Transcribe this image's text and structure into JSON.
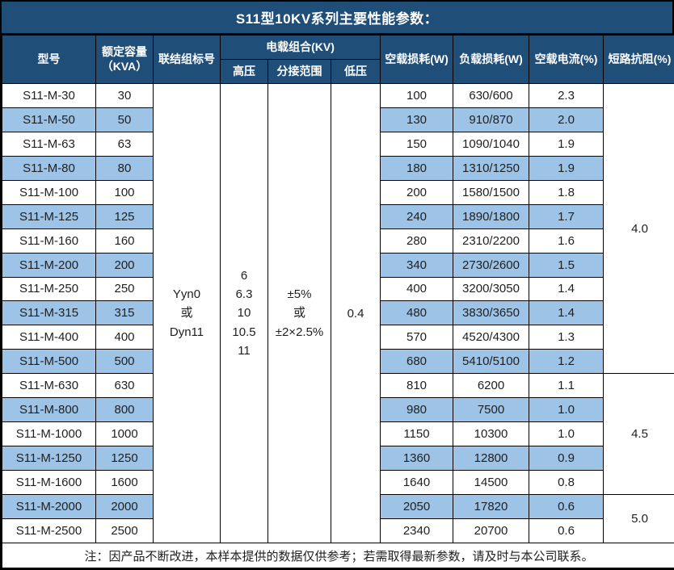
{
  "title": "S11型10KV系列主要性能参数：",
  "table": {
    "headers": {
      "model": "型号",
      "capacity_line1": "额定容量",
      "capacity_line2": "（KVA）",
      "connection": "联结组标号",
      "load_combo": "电载组合(KV)",
      "hv": "高压",
      "tap_range": "分接范围",
      "lv": "低压",
      "no_load_loss": "空载损耗(W)",
      "load_loss": "负载损耗(W)",
      "no_load_current": "空载电流(%)",
      "impedance": "短路抗阻(%)"
    },
    "merged": {
      "connection_value": "Yyn0\n或\nDyn11",
      "hv_value": "6\n6.3\n10\n10.5\n11",
      "tap_value": "±5%\n或\n±2×2.5%",
      "lv_value": "0.4"
    },
    "rows": [
      {
        "model": "S11-M-30",
        "capacity": "30",
        "no_load_loss": "100",
        "load_loss": "630/600",
        "no_load_current": "2.3"
      },
      {
        "model": "S11-M-50",
        "capacity": "50",
        "no_load_loss": "130",
        "load_loss": "910/870",
        "no_load_current": "2.0"
      },
      {
        "model": "S11-M-63",
        "capacity": "63",
        "no_load_loss": "150",
        "load_loss": "1090/1040",
        "no_load_current": "1.9"
      },
      {
        "model": "S11-M-80",
        "capacity": "80",
        "no_load_loss": "180",
        "load_loss": "1310/1250",
        "no_load_current": "1.9"
      },
      {
        "model": "S11-M-100",
        "capacity": "100",
        "no_load_loss": "200",
        "load_loss": "1580/1500",
        "no_load_current": "1.8"
      },
      {
        "model": "S11-M-125",
        "capacity": "125",
        "no_load_loss": "240",
        "load_loss": "1890/1800",
        "no_load_current": "1.7"
      },
      {
        "model": "S11-M-160",
        "capacity": "160",
        "no_load_loss": "280",
        "load_loss": "2310/2200",
        "no_load_current": "1.6"
      },
      {
        "model": "S11-M-200",
        "capacity": "200",
        "no_load_loss": "340",
        "load_loss": "2730/2600",
        "no_load_current": "1.5"
      },
      {
        "model": "S11-M-250",
        "capacity": "250",
        "no_load_loss": "400",
        "load_loss": "3200/3050",
        "no_load_current": "1.4"
      },
      {
        "model": "S11-M-315",
        "capacity": "315",
        "no_load_loss": "480",
        "load_loss": "3830/3650",
        "no_load_current": "1.4"
      },
      {
        "model": "S11-M-400",
        "capacity": "400",
        "no_load_loss": "570",
        "load_loss": "4520/4300",
        "no_load_current": "1.3"
      },
      {
        "model": "S11-M-500",
        "capacity": "500",
        "no_load_loss": "680",
        "load_loss": "5410/5100",
        "no_load_current": "1.2"
      },
      {
        "model": "S11-M-630",
        "capacity": "630",
        "no_load_loss": "810",
        "load_loss": "6200",
        "no_load_current": "1.1"
      },
      {
        "model": "S11-M-800",
        "capacity": "800",
        "no_load_loss": "980",
        "load_loss": "7500",
        "no_load_current": "1.0"
      },
      {
        "model": "S11-M-1000",
        "capacity": "1000",
        "no_load_loss": "1150",
        "load_loss": "10300",
        "no_load_current": "1.0"
      },
      {
        "model": "S11-M-1250",
        "capacity": "1250",
        "no_load_loss": "1360",
        "load_loss": "12800",
        "no_load_current": "0.9"
      },
      {
        "model": "S11-M-1600",
        "capacity": "1600",
        "no_load_loss": "1640",
        "load_loss": "14500",
        "no_load_current": "0.8"
      },
      {
        "model": "S11-M-2000",
        "capacity": "2000",
        "no_load_loss": "2050",
        "load_loss": "17820",
        "no_load_current": "0.6"
      },
      {
        "model": "S11-M-2500",
        "capacity": "2500",
        "no_load_loss": "2340",
        "load_loss": "20700",
        "no_load_current": "0.6"
      }
    ],
    "impedance_groups": [
      {
        "value": "4.0",
        "rowspan": 12
      },
      {
        "value": "4.5",
        "rowspan": 5
      },
      {
        "value": "5.0",
        "rowspan": 2
      }
    ]
  },
  "note": "注：因产品不断改进，本样本提供的数据仅供参考；若需取得最新参数，请及时与本公司联系。",
  "colors": {
    "header_bg": "#1F4E79",
    "stripe_bg": "#9DC3E6",
    "border": "#000000",
    "header_text": "#FFFFFF",
    "body_text": "#1F1F1F"
  }
}
